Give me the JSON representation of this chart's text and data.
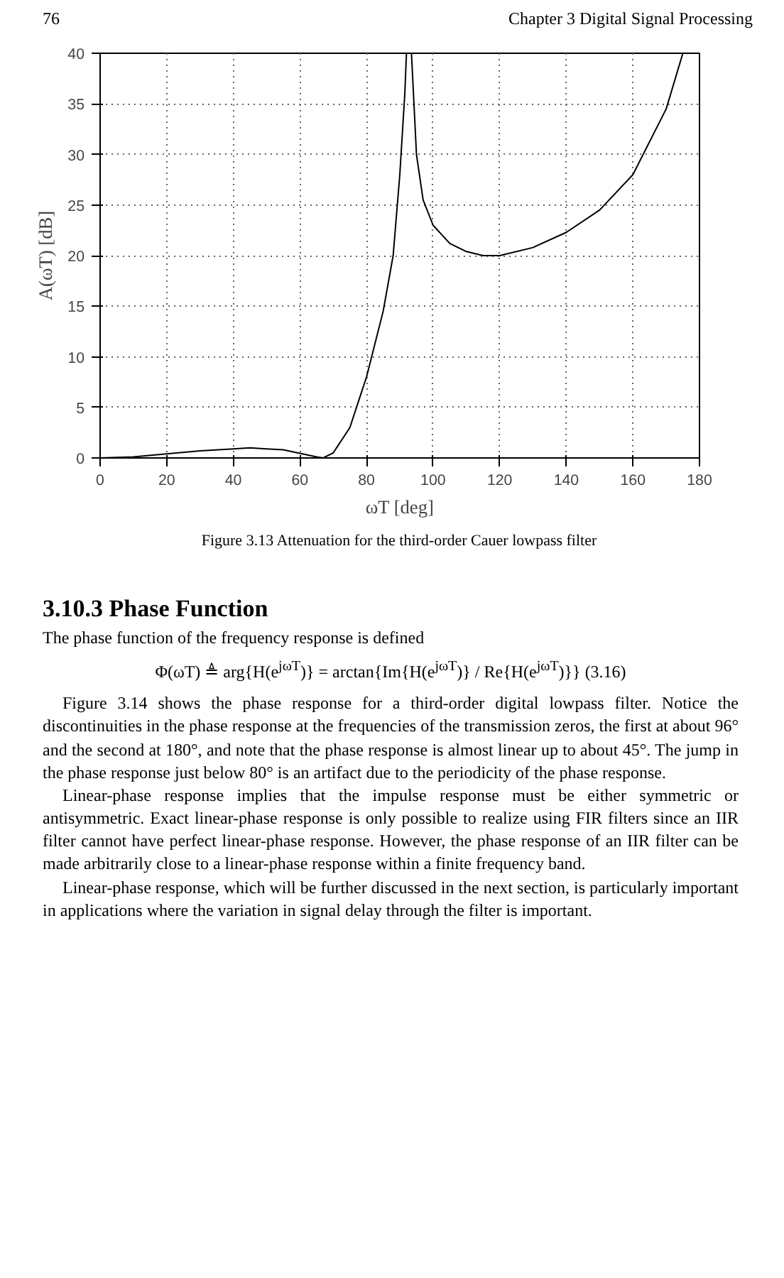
{
  "chart_data": {
    "type": "line",
    "title": "Figure 3.13  Attenuation for the third-order Cauer lowpass filter",
    "xlabel": "ωT [deg]",
    "ylabel": "A(ωT) [dB]",
    "x": [
      0,
      10,
      20,
      30,
      40,
      45,
      50,
      55,
      60,
      65,
      67,
      70,
      75,
      80,
      85,
      88,
      90,
      91.5,
      92,
      92.7,
      93.5,
      95,
      97,
      100,
      105,
      110,
      115,
      120,
      130,
      140,
      150,
      160,
      170,
      175
    ],
    "series": [
      {
        "color": "#000000",
        "values": [
          0,
          0.1,
          0.4,
          0.7,
          0.9,
          1.0,
          0.9,
          0.8,
          0.45,
          0.1,
          0,
          0.5,
          3,
          8,
          14.5,
          20,
          28,
          36,
          40,
          null,
          40,
          30,
          25.5,
          23,
          21.2,
          20.4,
          20,
          20,
          20.8,
          22.3,
          24.5,
          28,
          34.5,
          40
        ]
      }
    ],
    "xlim": [
      0,
      180
    ],
    "ylim": [
      0,
      40
    ],
    "xticks": [
      0,
      20,
      40,
      60,
      80,
      100,
      120,
      140,
      160,
      180
    ],
    "yticks": [
      0,
      5,
      10,
      15,
      20,
      25,
      30,
      35,
      40
    ],
    "grid": true,
    "marker": "none",
    "line_style": "solid",
    "annotations": [
      "76",
      "Chapter 3  Digital Signal Processing",
      "3.10.3  Phase Function",
      "The phase function of the frequency response is defined",
      "Φ(ωT) ≜ arg{H(e$^{jωT}$)} = arctan{Im{H(e$^{jωT}$)} / Re{H(e$^{jωT}$)}}     (3.16)",
      "Figure 3.14 shows the phase response for a third-order digital lowpass filter. Notice the discontinuities in the phase response at the frequencies of the transmission zeros, the first at about 96° and the second at 180°, and note that the phase response is almost linear up to about 45°. The jump in the phase response just below 80° is an artifact due to the periodicity of the phase response.",
      "Linear-phase response implies that the impulse response must be either symmetric or antisymmetric. Exact linear-phase response is only possible to realize using FIR filters since an IIR filter cannot have perfect linear-phase response. However, the phase response of an IIR filter can be made arbitrarily close to a linear-phase response within a finite frequency band.",
      "Linear-phase response, which will be further discussed in the next section, is particularly important in applications where the variation in signal delay through the filter is important."
    ]
  }
}
